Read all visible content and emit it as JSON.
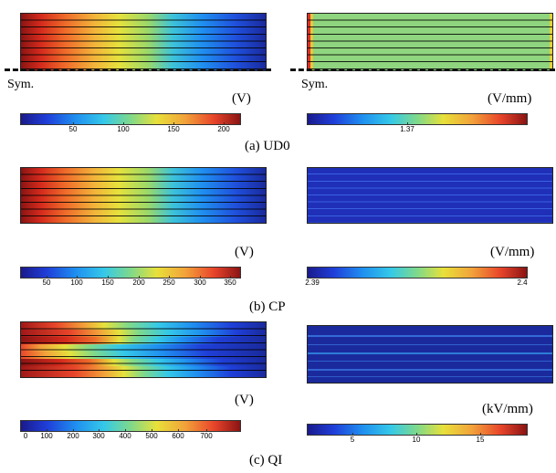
{
  "rows": [
    {
      "caption": "(a) UD0",
      "left": {
        "unit": "(V)",
        "ticks": [
          "50",
          "100",
          "150",
          "200"
        ],
        "sym": "Sym."
      },
      "right": {
        "unit": "(V/mm)",
        "ticks": [
          "1.37"
        ],
        "sym": "Sym."
      }
    },
    {
      "caption": "(b) CP",
      "left": {
        "unit": "(V)",
        "ticks": [
          "50",
          "100",
          "150",
          "200",
          "250",
          "300",
          "350"
        ]
      },
      "right": {
        "unit": "(V/mm)",
        "ticks": [
          "2.39",
          "2.4"
        ]
      }
    },
    {
      "caption": "(c) QI",
      "left": {
        "unit": "(V)",
        "ticks": [
          "0",
          "100",
          "200",
          "300",
          "400",
          "500",
          "600",
          "700"
        ]
      },
      "right": {
        "unit": "(kV/mm)",
        "ticks": [
          "5",
          "10",
          "15"
        ]
      }
    }
  ],
  "colormap": [
    "#1a1a8c",
    "#1f3fd9",
    "#1f8ff0",
    "#35c9e8",
    "#7fd98a",
    "#e8e03a",
    "#f2a23a",
    "#e8452a",
    "#8a1414"
  ]
}
